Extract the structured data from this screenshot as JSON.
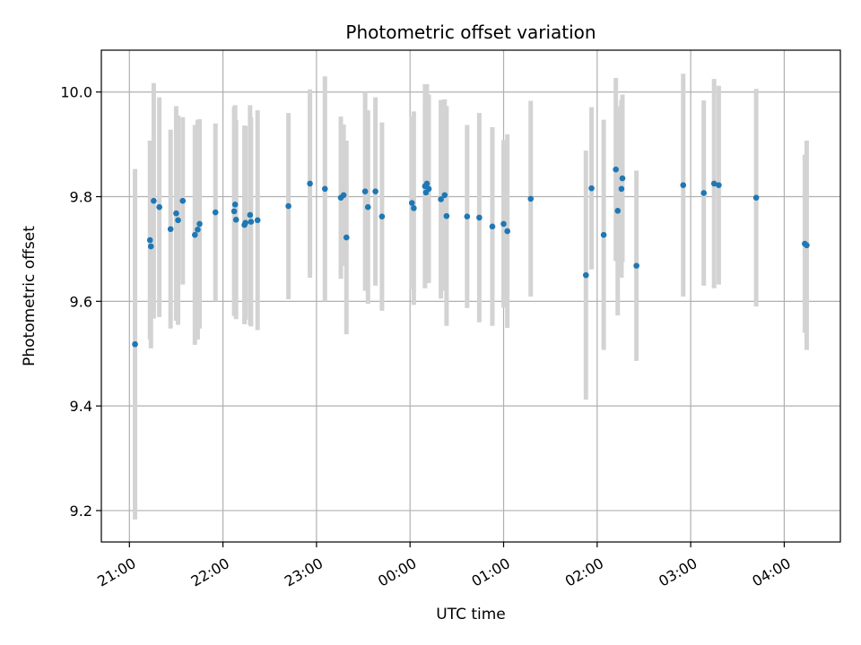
{
  "chart_data": {
    "type": "scatter",
    "title": "Photometric offset variation",
    "xlabel": "UTC time",
    "ylabel": "Photometric offset",
    "x_unit": "hours relative to 00:00 UTC",
    "xlim": [
      -3.3,
      4.6
    ],
    "ylim": [
      9.14,
      10.08
    ],
    "x_ticks": [
      {
        "value": -3,
        "label": "21:00"
      },
      {
        "value": -2,
        "label": "22:00"
      },
      {
        "value": -1,
        "label": "23:00"
      },
      {
        "value": 0,
        "label": "00:00"
      },
      {
        "value": 1,
        "label": "01:00"
      },
      {
        "value": 2,
        "label": "02:00"
      },
      {
        "value": 3,
        "label": "03:00"
      },
      {
        "value": 4,
        "label": "04:00"
      }
    ],
    "y_ticks": [
      {
        "value": 9.2,
        "label": "9.2"
      },
      {
        "value": 9.4,
        "label": "9.4"
      },
      {
        "value": 9.6,
        "label": "9.6"
      },
      {
        "value": 9.8,
        "label": "9.8"
      },
      {
        "value": 10.0,
        "label": "10.0"
      }
    ],
    "grid": true,
    "colors": {
      "point": "#1f77b4",
      "errorbar": "#d3d3d3"
    },
    "points": [
      {
        "x": -2.94,
        "y": 9.518,
        "err": 0.335
      },
      {
        "x": -2.78,
        "y": 9.717,
        "err": 0.19
      },
      {
        "x": -2.77,
        "y": 9.705,
        "err": 0.195
      },
      {
        "x": -2.74,
        "y": 9.792,
        "err": 0.225
      },
      {
        "x": -2.68,
        "y": 9.78,
        "err": 0.21
      },
      {
        "x": -2.56,
        "y": 9.738,
        "err": 0.19
      },
      {
        "x": -2.5,
        "y": 9.768,
        "err": 0.205
      },
      {
        "x": -2.48,
        "y": 9.755,
        "err": 0.2
      },
      {
        "x": -2.43,
        "y": 9.792,
        "err": 0.16
      },
      {
        "x": -2.3,
        "y": 9.727,
        "err": 0.21
      },
      {
        "x": -2.27,
        "y": 9.737,
        "err": 0.21
      },
      {
        "x": -2.25,
        "y": 9.748,
        "err": 0.2
      },
      {
        "x": -2.08,
        "y": 9.77,
        "err": 0.17
      },
      {
        "x": -1.88,
        "y": 9.772,
        "err": 0.2
      },
      {
        "x": -1.87,
        "y": 9.785,
        "err": 0.19
      },
      {
        "x": -1.86,
        "y": 9.756,
        "err": 0.19
      },
      {
        "x": -1.77,
        "y": 9.746,
        "err": 0.19
      },
      {
        "x": -1.76,
        "y": 9.75,
        "err": 0.185
      },
      {
        "x": -1.71,
        "y": 9.765,
        "err": 0.21
      },
      {
        "x": -1.7,
        "y": 9.752,
        "err": 0.2
      },
      {
        "x": -1.63,
        "y": 9.755,
        "err": 0.21
      },
      {
        "x": -1.3,
        "y": 9.782,
        "err": 0.178
      },
      {
        "x": -1.07,
        "y": 9.825,
        "err": 0.18
      },
      {
        "x": -0.91,
        "y": 9.815,
        "err": 0.215
      },
      {
        "x": -0.74,
        "y": 9.798,
        "err": 0.155
      },
      {
        "x": -0.71,
        "y": 9.803,
        "err": 0.135
      },
      {
        "x": -0.68,
        "y": 9.722,
        "err": 0.185
      },
      {
        "x": -0.48,
        "y": 9.81,
        "err": 0.19
      },
      {
        "x": -0.45,
        "y": 9.78,
        "err": 0.185
      },
      {
        "x": -0.37,
        "y": 9.81,
        "err": 0.18
      },
      {
        "x": -0.3,
        "y": 9.762,
        "err": 0.18
      },
      {
        "x": 0.02,
        "y": 9.788,
        "err": 0.165
      },
      {
        "x": 0.04,
        "y": 9.778,
        "err": 0.185
      },
      {
        "x": 0.16,
        "y": 9.82,
        "err": 0.195
      },
      {
        "x": 0.17,
        "y": 9.808,
        "err": 0.17
      },
      {
        "x": 0.18,
        "y": 9.825,
        "err": 0.19
      },
      {
        "x": 0.2,
        "y": 9.815,
        "err": 0.18
      },
      {
        "x": 0.33,
        "y": 9.795,
        "err": 0.19
      },
      {
        "x": 0.37,
        "y": 9.803,
        "err": 0.183
      },
      {
        "x": 0.39,
        "y": 9.763,
        "err": 0.21
      },
      {
        "x": 0.61,
        "y": 9.762,
        "err": 0.175
      },
      {
        "x": 0.74,
        "y": 9.76,
        "err": 0.2
      },
      {
        "x": 0.88,
        "y": 9.743,
        "err": 0.19
      },
      {
        "x": 1.0,
        "y": 9.748,
        "err": 0.16
      },
      {
        "x": 1.04,
        "y": 9.734,
        "err": 0.185
      },
      {
        "x": 1.29,
        "y": 9.796,
        "err": 0.187
      },
      {
        "x": 1.88,
        "y": 9.65,
        "err": 0.238
      },
      {
        "x": 1.94,
        "y": 9.816,
        "err": 0.155
      },
      {
        "x": 2.07,
        "y": 9.727,
        "err": 0.22
      },
      {
        "x": 2.2,
        "y": 9.852,
        "err": 0.175
      },
      {
        "x": 2.22,
        "y": 9.773,
        "err": 0.2
      },
      {
        "x": 2.26,
        "y": 9.815,
        "err": 0.17
      },
      {
        "x": 2.27,
        "y": 9.835,
        "err": 0.16
      },
      {
        "x": 2.42,
        "y": 9.668,
        "err": 0.182
      },
      {
        "x": 2.92,
        "y": 9.822,
        "err": 0.213
      },
      {
        "x": 3.14,
        "y": 9.807,
        "err": 0.177
      },
      {
        "x": 3.25,
        "y": 9.825,
        "err": 0.2
      },
      {
        "x": 3.3,
        "y": 9.822,
        "err": 0.19
      },
      {
        "x": 3.7,
        "y": 9.798,
        "err": 0.208
      },
      {
        "x": 4.22,
        "y": 9.71,
        "err": 0.17
      },
      {
        "x": 4.24,
        "y": 9.707,
        "err": 0.2
      }
    ]
  }
}
